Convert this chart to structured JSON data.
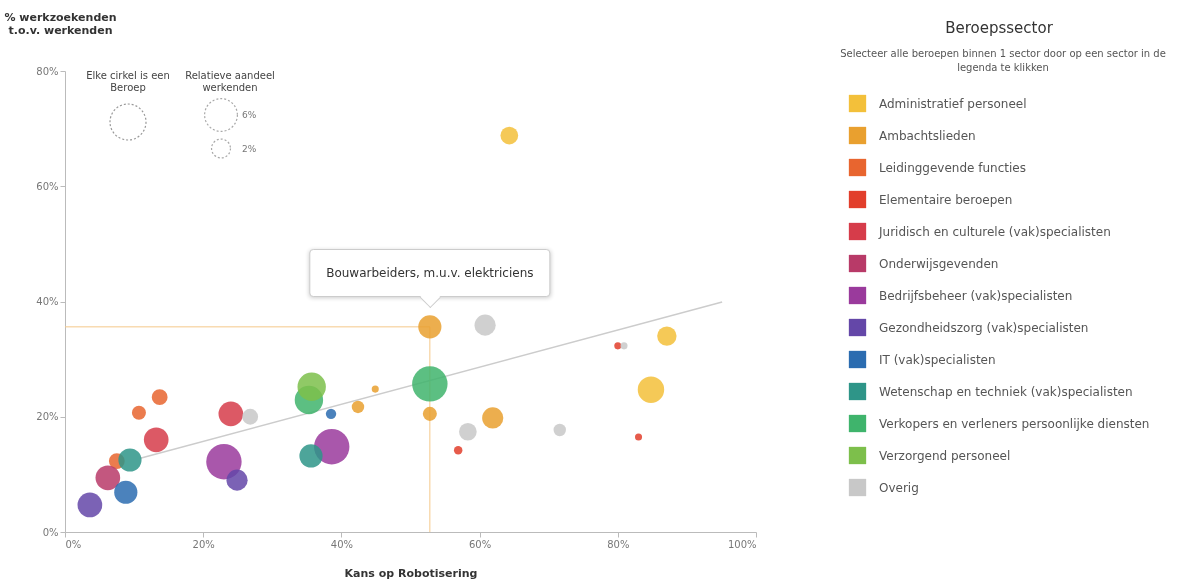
{
  "chart_data": {
    "type": "bubble",
    "xlabel": "Kans op Robotisering",
    "ylabel": "% werkzoekenden t.o.v. werkenden",
    "legend_title": "Beroepssector",
    "xlim": [
      0,
      100
    ],
    "ylim": [
      0,
      80
    ],
    "xticks": [
      {
        "value": 0,
        "label": "0%"
      },
      {
        "value": 20,
        "label": "20%"
      },
      {
        "value": 40,
        "label": "40%"
      },
      {
        "value": 60,
        "label": "60%"
      },
      {
        "value": 80,
        "label": "80%"
      },
      {
        "value": 100,
        "label": "100%"
      }
    ],
    "yticks": [
      {
        "value": 0,
        "label": "0%"
      },
      {
        "value": 20,
        "label": "20%"
      },
      {
        "value": 40,
        "label": "40%"
      },
      {
        "value": 60,
        "label": "60%"
      },
      {
        "value": 80,
        "label": "80%"
      }
    ],
    "size_legend": [
      {
        "value": 6,
        "label": "6%"
      },
      {
        "value": 2,
        "label": "2%"
      }
    ],
    "grid": false,
    "legend": "right",
    "marker": "circle",
    "ref_lines": [
      {
        "axis": "x",
        "value": 52.8,
        "color": "#f5c98a"
      },
      {
        "axis": "y",
        "value": 35.6,
        "color": "#f5c98a"
      }
    ],
    "annotations": [
      "Elke cirkel is een Beroep",
      "Relatieve aandeel werkenden",
      "Selecteer alle beroepen binnen 1 sector door op een sector in de legenda te klikken",
      "Bouwarbeiders, m.u.v. elektriciens"
    ],
    "series": [
      {
        "name": "Administratief personeel",
        "color": "#f3c03a",
        "x": [
          64.3,
          87.1,
          84.8
        ],
        "values": [
          68.8,
          34.0,
          24.7
        ],
        "sizes": [
          1.75,
          2.1,
          3.9
        ]
      },
      {
        "name": "Ambachtslieden",
        "color": "#e9a02f",
        "x": [
          52.8,
          44.9,
          42.4,
          52.8,
          61.9
        ],
        "values": [
          35.6,
          24.8,
          21.7,
          20.5,
          19.8
        ],
        "sizes": [
          3.0,
          0.28,
          0.86,
          1.1,
          2.5
        ]
      },
      {
        "name": "Leidinggevende functies",
        "color": "#e8652f",
        "x": [
          13.7,
          10.7,
          7.5
        ],
        "values": [
          23.4,
          20.7,
          12.3
        ],
        "sizes": [
          1.4,
          1.1,
          1.4
        ]
      },
      {
        "name": "Elementaire beroepen",
        "color": "#e23e2b",
        "x": [
          80.0,
          83.0,
          56.9
        ],
        "values": [
          32.3,
          16.5,
          14.2
        ],
        "sizes": [
          0.28,
          0.28,
          0.4
        ]
      },
      {
        "name": "Juridisch en culturele (vak)specialisten",
        "color": "#d63c4a",
        "x": [
          24.0,
          13.2
        ],
        "values": [
          20.5,
          16.0
        ],
        "sizes": [
          3.4,
          3.4
        ]
      },
      {
        "name": "Onderwijsgevenden",
        "color": "#b83a68",
        "x": [
          6.2
        ],
        "values": [
          9.4
        ],
        "sizes": [
          3.4
        ]
      },
      {
        "name": "Bedrijfsbeheer (vak)specialisten",
        "color": "#9a3a9c",
        "x": [
          23.0,
          38.6
        ],
        "values": [
          12.2,
          14.8
        ],
        "sizes": [
          7.0,
          7.0
        ]
      },
      {
        "name": "Gezondheidszorg (vak)specialisten",
        "color": "#6447a8",
        "x": [
          3.6,
          24.9
        ],
        "values": [
          4.7,
          9.0
        ],
        "sizes": [
          3.4,
          2.5
        ]
      },
      {
        "name": "IT (vak)specialisten",
        "color": "#2b6cb0",
        "x": [
          8.8,
          38.5
        ],
        "values": [
          6.9,
          20.5
        ],
        "sizes": [
          3.0,
          0.6
        ]
      },
      {
        "name": "Wetenschap en techniek (vak)specialisten",
        "color": "#2e9588",
        "x": [
          9.4,
          35.6
        ],
        "values": [
          12.5,
          13.2
        ],
        "sizes": [
          3.0,
          3.0
        ]
      },
      {
        "name": "Verkopers en verleners persoonlijke diensten",
        "color": "#3fb46c",
        "x": [
          35.3,
          52.8
        ],
        "values": [
          22.9,
          25.7
        ],
        "sizes": [
          4.5,
          7.0
        ]
      },
      {
        "name": "Verzorgend personeel",
        "color": "#7dbf4b",
        "x": [
          35.7
        ],
        "values": [
          25.2
        ],
        "sizes": [
          4.5
        ]
      },
      {
        "name": "Overig",
        "color": "#c8c8c8",
        "x": [
          26.8,
          60.8,
          58.3,
          71.6,
          80.9
        ],
        "values": [
          20.0,
          35.9,
          17.4,
          17.7,
          32.3
        ],
        "sizes": [
          1.4,
          2.5,
          1.75,
          0.86,
          0.28
        ]
      },
      {
        "type": "line",
        "color": "#cccccc",
        "marker": "none",
        "x": [
          10.9,
          95.1
        ],
        "values": [
          12.8,
          39.9
        ]
      }
    ]
  }
}
